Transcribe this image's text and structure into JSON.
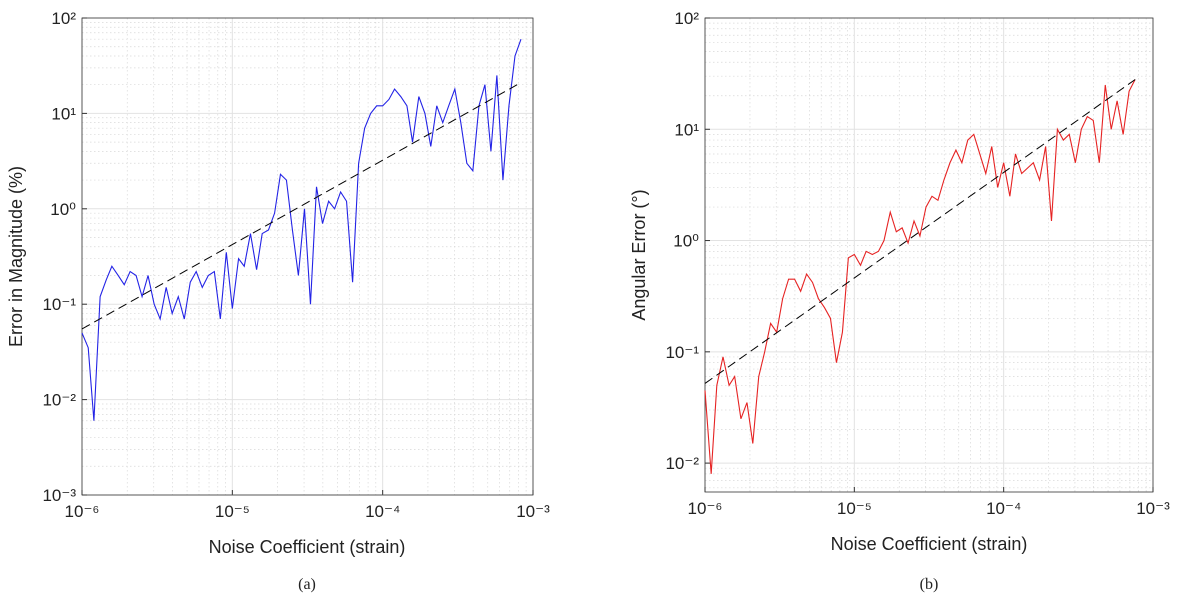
{
  "chart_data": [
    {
      "type": "line",
      "xlabel": "Noise Coefficient (strain)",
      "ylabel": "Error in Magnitude (%)",
      "caption": "(a)",
      "xscale": "log",
      "yscale": "log",
      "grid": true,
      "minor_grid": true,
      "xlim": [
        1e-06,
        0.001
      ],
      "ylim": [
        0.001,
        100
      ],
      "xticks": [
        {
          "value": 1e-06,
          "label": "10⁻⁶"
        },
        {
          "value": 1e-05,
          "label": "10⁻⁵"
        },
        {
          "value": 0.0001,
          "label": "10⁻⁴"
        },
        {
          "value": 0.001,
          "label": "10⁻³"
        }
      ],
      "yticks": [
        {
          "value": 0.001,
          "label": "10⁻³"
        },
        {
          "value": 0.01,
          "label": "10⁻²"
        },
        {
          "value": 0.1,
          "label": "10⁻¹"
        },
        {
          "value": 1,
          "label": "10⁰"
        },
        {
          "value": 10,
          "label": "10¹"
        },
        {
          "value": 100,
          "label": "10²"
        }
      ],
      "series": [
        {
          "color": "#2323e6",
          "line_style": "solid",
          "x": [
            1e-06,
            1.1e-06,
            1.2e-06,
            1.32e-06,
            1.45e-06,
            1.58e-06,
            1.74e-06,
            1.91e-06,
            2.09e-06,
            2.29e-06,
            2.51e-06,
            2.75e-06,
            3.02e-06,
            3.31e-06,
            3.63e-06,
            3.98e-06,
            4.37e-06,
            4.79e-06,
            5.25e-06,
            5.75e-06,
            6.31e-06,
            6.92e-06,
            7.59e-06,
            8.32e-06,
            9.12e-06,
            1e-05,
            1.1e-05,
            1.2e-05,
            1.32e-05,
            1.45e-05,
            1.58e-05,
            1.74e-05,
            1.91e-05,
            2.09e-05,
            2.29e-05,
            2.51e-05,
            2.75e-05,
            3.02e-05,
            3.31e-05,
            3.63e-05,
            3.98e-05,
            4.37e-05,
            4.79e-05,
            5.25e-05,
            5.75e-05,
            6.31e-05,
            6.92e-05,
            7.59e-05,
            8.32e-05,
            9.12e-05,
            0.0001,
            0.00011,
            0.00012,
            0.000132,
            0.000145,
            0.000158,
            0.000174,
            0.000191,
            0.000209,
            0.000229,
            0.000251,
            0.000275,
            0.000302,
            0.000331,
            0.000363,
            0.000398,
            0.000437,
            0.000479,
            0.000525,
            0.000575,
            0.000631,
            0.000692,
            0.000759,
            0.000832
          ],
          "values": [
            0.05,
            0.035,
            0.006,
            0.12,
            0.18,
            0.25,
            0.2,
            0.16,
            0.22,
            0.2,
            0.12,
            0.2,
            0.1,
            0.07,
            0.15,
            0.08,
            0.12,
            0.07,
            0.17,
            0.22,
            0.15,
            0.2,
            0.22,
            0.07,
            0.35,
            0.09,
            0.3,
            0.25,
            0.55,
            0.23,
            0.55,
            0.6,
            0.9,
            2.3,
            2.0,
            0.6,
            0.2,
            1.0,
            0.1,
            1.7,
            0.7,
            1.2,
            1.0,
            1.5,
            1.2,
            0.17,
            3,
            7,
            10,
            12,
            12,
            14,
            18,
            15,
            12,
            5,
            15,
            10,
            4.5,
            12,
            8,
            12,
            18,
            8,
            3,
            2.5,
            12,
            20,
            4,
            25,
            2,
            12,
            40,
            60
          ]
        },
        {
          "color": "#000000",
          "line_style": "dashed",
          "x": [
            1e-06,
            0.00083
          ],
          "values": [
            0.055,
            21
          ]
        }
      ]
    },
    {
      "type": "line",
      "xlabel": "Noise Coefficient (strain)",
      "ylabel": "Angular Error (°)",
      "caption": "(b)",
      "xscale": "log",
      "yscale": "log",
      "grid": true,
      "minor_grid": true,
      "xlim": [
        1e-06,
        0.001
      ],
      "ylim": [
        0.0055,
        100
      ],
      "xticks": [
        {
          "value": 1e-06,
          "label": "10⁻⁶"
        },
        {
          "value": 1e-05,
          "label": "10⁻⁵"
        },
        {
          "value": 0.0001,
          "label": "10⁻⁴"
        },
        {
          "value": 0.001,
          "label": "10⁻³"
        }
      ],
      "yticks": [
        {
          "value": 0.01,
          "label": "10⁻²"
        },
        {
          "value": 0.1,
          "label": "10⁻¹"
        },
        {
          "value": 1,
          "label": "10⁰"
        },
        {
          "value": 10,
          "label": "10¹"
        },
        {
          "value": 100,
          "label": "10²"
        }
      ],
      "series": [
        {
          "color": "#e62323",
          "line_style": "solid",
          "x": [
            1e-06,
            1.1e-06,
            1.2e-06,
            1.32e-06,
            1.45e-06,
            1.58e-06,
            1.74e-06,
            1.91e-06,
            2.09e-06,
            2.29e-06,
            2.51e-06,
            2.75e-06,
            3.02e-06,
            3.31e-06,
            3.63e-06,
            3.98e-06,
            4.37e-06,
            4.79e-06,
            5.25e-06,
            5.75e-06,
            6.31e-06,
            6.92e-06,
            7.59e-06,
            8.32e-06,
            9.12e-06,
            1e-05,
            1.1e-05,
            1.2e-05,
            1.32e-05,
            1.45e-05,
            1.58e-05,
            1.74e-05,
            1.91e-05,
            2.09e-05,
            2.29e-05,
            2.51e-05,
            2.75e-05,
            3.02e-05,
            3.31e-05,
            3.63e-05,
            3.98e-05,
            4.37e-05,
            4.79e-05,
            5.25e-05,
            5.75e-05,
            6.31e-05,
            6.92e-05,
            7.59e-05,
            8.32e-05,
            9.12e-05,
            0.0001,
            0.00011,
            0.00012,
            0.000132,
            0.000145,
            0.000158,
            0.000174,
            0.000191,
            0.000209,
            0.000229,
            0.000251,
            0.000275,
            0.000302,
            0.000331,
            0.000363,
            0.000398,
            0.000437,
            0.000479,
            0.000525,
            0.000575,
            0.000631,
            0.000692,
            0.000759
          ],
          "values": [
            0.045,
            0.008,
            0.05,
            0.09,
            0.05,
            0.06,
            0.025,
            0.035,
            0.015,
            0.06,
            0.1,
            0.18,
            0.15,
            0.3,
            0.45,
            0.45,
            0.35,
            0.5,
            0.42,
            0.3,
            0.25,
            0.2,
            0.08,
            0.15,
            0.7,
            0.75,
            0.6,
            0.8,
            0.75,
            0.8,
            1.0,
            1.8,
            1.2,
            1.3,
            0.95,
            1.5,
            1.1,
            2,
            2.5,
            2.3,
            3.5,
            5,
            6.5,
            5,
            8,
            9,
            6,
            4,
            7,
            3,
            5,
            2.5,
            6,
            4,
            4.5,
            5,
            3.5,
            7,
            1.5,
            10,
            8,
            9,
            5,
            10,
            13,
            12,
            5,
            25,
            10,
            18,
            9,
            22,
            28
          ]
        },
        {
          "color": "#000000",
          "line_style": "dashed",
          "x": [
            1e-06,
            0.00076
          ],
          "values": [
            0.052,
            28
          ]
        }
      ]
    }
  ]
}
